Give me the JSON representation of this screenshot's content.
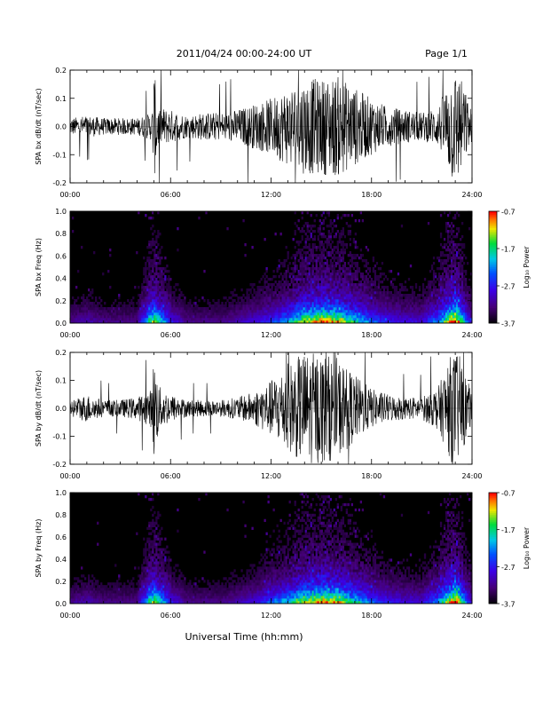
{
  "header": {
    "title": "2011/04/24  00:00-24:00 UT",
    "page": "Page 1/1"
  },
  "xaxis": {
    "label": "Universal Time (hh:mm)",
    "range_hours": [
      0,
      24
    ],
    "ticks": [
      0,
      6,
      12,
      18,
      24
    ],
    "tick_labels": [
      "00:00",
      "06:00",
      "12:00",
      "18:00",
      "24:00"
    ]
  },
  "chart_data": [
    {
      "type": "line",
      "ylabel": "SPA bx dB/dt (nT/sec)",
      "ylim": [
        -0.2,
        0.2
      ],
      "yticks": [
        -0.2,
        -0.1,
        0.0,
        0.1,
        0.2
      ],
      "ytick_labels": [
        "-0.2",
        "-0.1",
        "0.0",
        "0.1",
        "0.2"
      ],
      "color": "#000000",
      "series": [
        {
          "x": [
            0,
            1.0,
            2.0,
            3.0,
            4.0,
            4.9,
            5.0,
            5.3,
            6.0,
            7.0,
            8.0,
            9.0,
            10.0,
            11.0,
            12.0,
            13.0,
            14.0,
            15.0,
            16.0,
            17.0,
            18.0,
            19.0,
            20.0,
            21.0,
            22.0,
            22.8,
            23.2,
            24.0
          ],
          "amplitude": [
            0.03,
            0.04,
            0.03,
            0.03,
            0.03,
            0.05,
            0.2,
            0.07,
            0.06,
            0.04,
            0.05,
            0.05,
            0.06,
            0.08,
            0.1,
            0.14,
            0.17,
            0.17,
            0.18,
            0.14,
            0.1,
            0.07,
            0.06,
            0.05,
            0.07,
            0.2,
            0.2,
            0.05
          ]
        }
      ]
    },
    {
      "type": "heatmap",
      "ylabel": "SPA bx Freq (Hz)",
      "ylim": [
        0,
        1.0
      ],
      "yticks": [
        0.0,
        0.2,
        0.4,
        0.6,
        0.8,
        1.0
      ],
      "ytick_labels": [
        "0.0",
        "0.2",
        "0.4",
        "0.6",
        "0.8",
        "1.0"
      ],
      "colorbar": {
        "label": "Log₁₀ Power",
        "range": [
          -3.7,
          -0.7
        ],
        "ticks": [
          "-0.7",
          "-1.7",
          "-2.7",
          "-3.7"
        ]
      },
      "activity_by_hour": [
        0.15,
        0.2,
        0.15,
        0.15,
        0.15,
        0.7,
        0.3,
        0.15,
        0.15,
        0.15,
        0.2,
        0.25,
        0.35,
        0.45,
        0.7,
        0.8,
        0.75,
        0.55,
        0.4,
        0.3,
        0.25,
        0.25,
        0.45,
        0.9,
        0.2
      ]
    },
    {
      "type": "line",
      "ylabel": "SPA by dB/dt (nT/sec)",
      "ylim": [
        -0.2,
        0.2
      ],
      "yticks": [
        -0.2,
        -0.1,
        0.0,
        0.1,
        0.2
      ],
      "ytick_labels": [
        "-0.2",
        "-0.1",
        "0.0",
        "0.1",
        "0.2"
      ],
      "color": "#000000",
      "series": [
        {
          "x": [
            0,
            1.0,
            2.0,
            3.0,
            4.0,
            4.9,
            5.0,
            5.3,
            6.0,
            7.0,
            8.0,
            9.0,
            10.0,
            11.0,
            12.0,
            13.0,
            14.0,
            15.0,
            16.0,
            17.0,
            18.0,
            19.0,
            20.0,
            21.0,
            22.0,
            22.8,
            23.2,
            24.0
          ],
          "amplitude": [
            0.03,
            0.05,
            0.03,
            0.03,
            0.04,
            0.07,
            0.2,
            0.08,
            0.05,
            0.03,
            0.03,
            0.03,
            0.04,
            0.06,
            0.1,
            0.16,
            0.2,
            0.2,
            0.18,
            0.12,
            0.07,
            0.05,
            0.04,
            0.04,
            0.08,
            0.2,
            0.2,
            0.05
          ]
        }
      ]
    },
    {
      "type": "heatmap",
      "ylabel": "SPA by Freq (Hz)",
      "ylim": [
        0,
        1.0
      ],
      "yticks": [
        0.0,
        0.2,
        0.4,
        0.6,
        0.8,
        1.0
      ],
      "ytick_labels": [
        "0.0",
        "0.2",
        "0.4",
        "0.6",
        "0.8",
        "1.0"
      ],
      "colorbar": {
        "label": "Log₁₀ Power",
        "range": [
          -3.7,
          -0.7
        ],
        "ticks": [
          "-0.7",
          "-1.7",
          "-2.7",
          "-3.7"
        ]
      },
      "activity_by_hour": [
        0.15,
        0.2,
        0.15,
        0.15,
        0.15,
        0.7,
        0.3,
        0.15,
        0.15,
        0.15,
        0.2,
        0.25,
        0.4,
        0.5,
        0.7,
        0.8,
        0.75,
        0.55,
        0.4,
        0.3,
        0.25,
        0.25,
        0.45,
        0.9,
        0.2
      ]
    }
  ]
}
